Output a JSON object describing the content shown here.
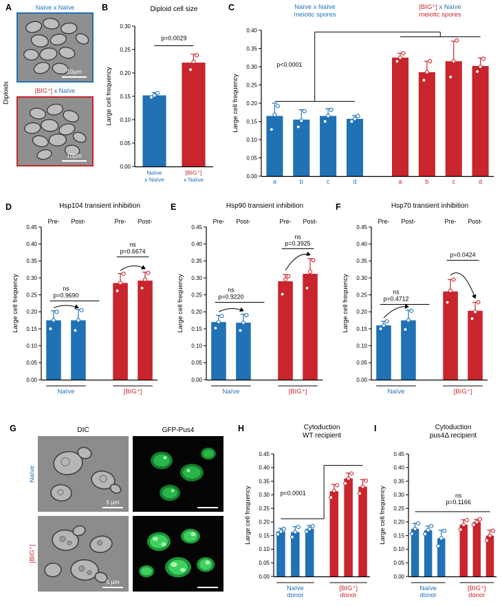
{
  "colors": {
    "blue": "#2171b5",
    "red": "#c9252c",
    "black": "#000000",
    "white": "#ffffff"
  },
  "panels": {
    "A": {
      "label": "A",
      "side_label": "Diploids",
      "top": {
        "title_parts": [
          {
            "t": "Naïve x Naïve",
            "c": "blue"
          }
        ],
        "scale_label": "10µm"
      },
      "bottom": {
        "title_parts": [
          {
            "t": "[BIG⁺]",
            "c": "red"
          },
          {
            "t": " x Naïve",
            "c": "blue"
          }
        ],
        "scale_label": "10µm"
      }
    },
    "B": {
      "label": "B"
    },
    "C": {
      "label": "C",
      "header_left": [
        [
          {
            "t": "Naïve x Naïve",
            "c": "blue"
          }
        ],
        [
          {
            "t": "meiotic spores",
            "c": "blue"
          }
        ]
      ],
      "header_right": [
        [
          {
            "t": "[BIG⁺]",
            "c": "red"
          },
          {
            "t": " x Naïve",
            "c": "blue"
          }
        ],
        [
          {
            "t": "meiotic spores",
            "c": "red"
          }
        ]
      ]
    },
    "D": {
      "label": "D"
    },
    "E": {
      "label": "E"
    },
    "F": {
      "label": "F"
    },
    "G": {
      "label": "G",
      "col_headers": [
        "DIC",
        "GFP-Pus4"
      ],
      "row_labels": [
        [
          {
            "t": "Naïve",
            "c": "blue"
          }
        ],
        [
          {
            "t": "[BIG⁺]",
            "c": "red"
          }
        ]
      ],
      "scale_label": "5 µm"
    },
    "H": {
      "label": "H"
    },
    "I": {
      "label": "I"
    }
  },
  "chart_data": [
    {
      "id": "B",
      "type": "bar",
      "title": "Diploid cell size",
      "ylabel": "Large cell frequency",
      "ylim": [
        0,
        0.3
      ],
      "ystep": 0.05,
      "margins": {
        "l": 46,
        "r": 12,
        "t": 14,
        "b": 40
      },
      "bar_frac": 0.6,
      "gap_after": -1,
      "bars": [
        {
          "v": 0.152,
          "e": 0.006,
          "c": "blue",
          "dots": [
            0.148,
            0.152,
            0.157
          ],
          "xlines": [
            [
              {
                "t": "Naïve",
                "c": "blue"
              }
            ],
            [
              {
                "t": "x Naïve",
                "c": "blue"
              }
            ]
          ]
        },
        {
          "v": 0.222,
          "e": 0.018,
          "c": "red",
          "dots": [
            0.207,
            0.224,
            0.238
          ],
          "xlines": [
            [
              {
                "t": "[BIG⁺]",
                "c": "red"
              }
            ],
            [
              {
                "t": "x Naïve",
                "c": "blue"
              }
            ]
          ]
        }
      ],
      "annots": [
        {
          "k": "hline",
          "x1": 0,
          "x2": 1,
          "y": 0.258
        },
        {
          "k": "text",
          "t": "p=0.0029",
          "x": 0.5,
          "y": 0.27
        }
      ]
    },
    {
      "id": "C",
      "type": "bar",
      "ylabel": "Large cell frequency",
      "ylim": [
        0,
        0.4
      ],
      "ystep": 0.05,
      "margins": {
        "l": 46,
        "r": 8,
        "t": 12,
        "b": 26
      },
      "bar_frac": 0.62,
      "gap_after": 3,
      "bars": [
        {
          "v": 0.165,
          "e": 0.035,
          "c": "blue",
          "dots": [
            0.128,
            0.168,
            0.192
          ],
          "xlab": "a"
        },
        {
          "v": 0.155,
          "e": 0.027,
          "c": "blue",
          "dots": [
            0.135,
            0.152,
            0.178
          ],
          "xlab": "b"
        },
        {
          "v": 0.165,
          "e": 0.02,
          "c": "blue",
          "dots": [
            0.15,
            0.165,
            0.182
          ],
          "xlab": "c"
        },
        {
          "v": 0.157,
          "e": 0.009,
          "c": "blue",
          "dots": [
            0.15,
            0.157,
            0.165
          ],
          "xlab": "d"
        },
        {
          "v": 0.325,
          "e": 0.012,
          "c": "red",
          "dots": [
            0.315,
            0.325,
            0.337
          ],
          "xlab": "a"
        },
        {
          "v": 0.285,
          "e": 0.03,
          "c": "red",
          "dots": [
            0.263,
            0.285,
            0.315
          ],
          "xlab": "b"
        },
        {
          "v": 0.315,
          "e": 0.055,
          "c": "red",
          "dots": [
            0.272,
            0.315,
            0.372
          ],
          "xlab": "c"
        },
        {
          "v": 0.302,
          "e": 0.022,
          "c": "red",
          "dots": [
            0.287,
            0.3,
            0.322
          ],
          "xlab": "d"
        }
      ],
      "annots": [
        {
          "k": "hline",
          "x1": 0,
          "x2": 3,
          "y": 0.205
        },
        {
          "k": "vline",
          "x": 1.5,
          "y1": 0.205,
          "y2": 0.395
        },
        {
          "k": "hline",
          "x1": 1.5,
          "x2": 5.5,
          "y": 0.395
        },
        {
          "k": "vline",
          "x": 5.5,
          "y1": 0.382,
          "y2": 0.395
        },
        {
          "k": "hline",
          "x1": 4,
          "x2": 7,
          "y": 0.382
        },
        {
          "k": "text",
          "t": "p<0.0001",
          "x": 0.55,
          "y": 0.3
        }
      ]
    },
    {
      "id": "D",
      "type": "bar",
      "title": "Hsp104 transient inhibition",
      "ylabel": "Large cell frequency",
      "ylim": [
        0,
        0.45
      ],
      "ystep": 0.05,
      "margins": {
        "l": 46,
        "r": 10,
        "t": 20,
        "b": 36
      },
      "bar_frac": 0.6,
      "gap_after": 1,
      "toplabels": [
        {
          "t": "Pre-",
          "x": 0
        },
        {
          "t": "Post-",
          "x": 1
        },
        {
          "t": "Pre-",
          "x": 2
        },
        {
          "t": "Post-",
          "x": 3
        }
      ],
      "bars": [
        {
          "v": 0.175,
          "e": 0.028,
          "c": "blue",
          "dots": [
            0.15,
            0.175,
            0.2
          ]
        },
        {
          "v": 0.175,
          "e": 0.032,
          "c": "blue",
          "dots": [
            0.145,
            0.175,
            0.205
          ]
        },
        {
          "v": 0.285,
          "e": 0.028,
          "c": "red",
          "dots": [
            0.262,
            0.285,
            0.312
          ]
        },
        {
          "v": 0.292,
          "e": 0.025,
          "c": "red",
          "dots": [
            0.27,
            0.295,
            0.315
          ]
        }
      ],
      "glabels": [
        {
          "lines": [
            "Naïve"
          ],
          "c": "blue",
          "x1": 0,
          "x2": 1
        },
        {
          "lines": [
            "[BIG⁺]"
          ],
          "c": "red",
          "x1": 2,
          "x2": 3
        }
      ],
      "annots": [
        {
          "k": "text",
          "t": "ns",
          "x": 0.5,
          "y": 0.262
        },
        {
          "k": "text",
          "t": "p=0.9690",
          "x": 0.5,
          "y": 0.242
        },
        {
          "k": "hline",
          "x1": -0.15,
          "x2": 1.15,
          "y": 0.232
        },
        {
          "k": "arc",
          "x1": 0,
          "x2": 1,
          "y1": 0.212,
          "y2": 0.212,
          "peak": 0.226
        },
        {
          "k": "text",
          "t": "ns",
          "x": 2.5,
          "y": 0.392
        },
        {
          "k": "text",
          "t": "p=0.6674",
          "x": 2.5,
          "y": 0.372
        },
        {
          "k": "hline",
          "x1": 1.85,
          "x2": 3.15,
          "y": 0.362
        },
        {
          "k": "arc",
          "x1": 2,
          "x2": 3,
          "y1": 0.322,
          "y2": 0.327,
          "peak": 0.346
        }
      ]
    },
    {
      "id": "E",
      "type": "bar",
      "title": "Hsp90 transient inhibition",
      "ylabel": "Large cell frequency",
      "ylim": [
        0,
        0.45
      ],
      "ystep": 0.05,
      "margins": {
        "l": 46,
        "r": 10,
        "t": 20,
        "b": 36
      },
      "bar_frac": 0.6,
      "gap_after": 1,
      "toplabels": [
        {
          "t": "Pre-",
          "x": 0
        },
        {
          "t": "Post-",
          "x": 1
        },
        {
          "t": "Pre-",
          "x": 2
        },
        {
          "t": "Post-",
          "x": 3
        }
      ],
      "bars": [
        {
          "v": 0.17,
          "e": 0.02,
          "c": "blue",
          "dots": [
            0.152,
            0.17,
            0.188
          ]
        },
        {
          "v": 0.168,
          "e": 0.025,
          "c": "blue",
          "dots": [
            0.145,
            0.168,
            0.19
          ]
        },
        {
          "v": 0.29,
          "e": 0.02,
          "c": "red",
          "dots": [
            0.252,
            0.295,
            0.305
          ]
        },
        {
          "v": 0.312,
          "e": 0.045,
          "c": "red",
          "dots": [
            0.27,
            0.318,
            0.352
          ]
        }
      ],
      "glabels": [
        {
          "lines": [
            "Naïve"
          ],
          "c": "blue",
          "x1": 0,
          "x2": 1
        },
        {
          "lines": [
            "[BIG⁺]"
          ],
          "c": "red",
          "x1": 2,
          "x2": 3
        }
      ],
      "annots": [
        {
          "k": "text",
          "t": "ns",
          "x": 0.5,
          "y": 0.258
        },
        {
          "k": "text",
          "t": "p=0.9220",
          "x": 0.5,
          "y": 0.238
        },
        {
          "k": "hline",
          "x1": -0.15,
          "x2": 1.15,
          "y": 0.228
        },
        {
          "k": "arc",
          "x1": 0,
          "x2": 1,
          "y1": 0.2,
          "y2": 0.203,
          "peak": 0.218
        },
        {
          "k": "text",
          "t": "ns",
          "x": 2.5,
          "y": 0.415
        },
        {
          "k": "text",
          "t": "p=0.3925",
          "x": 2.5,
          "y": 0.395
        },
        {
          "k": "hline",
          "x1": 1.85,
          "x2": 3.15,
          "y": 0.386
        },
        {
          "k": "arc",
          "x1": 2,
          "x2": 3,
          "y1": 0.322,
          "y2": 0.368,
          "peak": 0.38
        }
      ]
    },
    {
      "id": "F",
      "type": "bar",
      "title": "Hsp70 transient inhibition",
      "ylabel": "Large cell frequency",
      "ylim": [
        0,
        0.45
      ],
      "ystep": 0.05,
      "margins": {
        "l": 46,
        "r": 10,
        "t": 20,
        "b": 36
      },
      "bar_frac": 0.6,
      "gap_after": 1,
      "toplabels": [
        {
          "t": "Pre-",
          "x": 0
        },
        {
          "t": "Post-",
          "x": 1
        },
        {
          "t": "Pre-",
          "x": 2
        },
        {
          "t": "Post-",
          "x": 3
        }
      ],
      "bars": [
        {
          "v": 0.16,
          "e": 0.012,
          "c": "blue",
          "dots": [
            0.15,
            0.16,
            0.172
          ]
        },
        {
          "v": 0.175,
          "e": 0.03,
          "c": "blue",
          "dots": [
            0.148,
            0.175,
            0.203
          ]
        },
        {
          "v": 0.26,
          "e": 0.035,
          "c": "red",
          "dots": [
            0.228,
            0.262,
            0.295
          ]
        },
        {
          "v": 0.203,
          "e": 0.025,
          "c": "red",
          "dots": [
            0.18,
            0.2,
            0.228
          ]
        }
      ],
      "glabels": [
        {
          "lines": [
            "Naïve"
          ],
          "c": "blue",
          "x1": 0,
          "x2": 1
        },
        {
          "lines": [
            "[BIG⁺]"
          ],
          "c": "red",
          "x1": 2,
          "x2": 3
        }
      ],
      "annots": [
        {
          "k": "text",
          "t": "ns",
          "x": 0.5,
          "y": 0.252
        },
        {
          "k": "text",
          "t": "p=0.4712",
          "x": 0.5,
          "y": 0.232
        },
        {
          "k": "hline",
          "x1": -0.15,
          "x2": 1.15,
          "y": 0.222
        },
        {
          "k": "arc",
          "x1": 0,
          "x2": 1,
          "y1": 0.182,
          "y2": 0.215,
          "peak": 0.22
        },
        {
          "k": "text",
          "t": "p=0.0424",
          "x": 2.5,
          "y": 0.362
        },
        {
          "k": "hline",
          "x1": 1.85,
          "x2": 3.15,
          "y": 0.352
        },
        {
          "k": "arc",
          "x1": 2,
          "x2": 3,
          "y1": 0.308,
          "y2": 0.24,
          "peak": 0.338
        }
      ]
    },
    {
      "id": "H",
      "type": "bar",
      "title_lines": [
        "Cytoduction",
        "WT recipient"
      ],
      "ylabel": "Large cell frequency",
      "ylim": [
        0,
        0.45
      ],
      "ystep": 0.05,
      "margins": {
        "l": 46,
        "r": 6,
        "t": 12,
        "b": 38
      },
      "bar_frac": 0.6,
      "gap_after": 2,
      "bars": [
        {
          "v": 0.165,
          "e": 0.012,
          "c": "blue",
          "dots": [
            0.155,
            0.165,
            0.175
          ]
        },
        {
          "v": 0.163,
          "e": 0.02,
          "c": "blue",
          "dots": [
            0.145,
            0.163,
            0.182
          ]
        },
        {
          "v": 0.175,
          "e": 0.012,
          "c": "blue",
          "dots": [
            0.165,
            0.175,
            0.185
          ]
        },
        {
          "v": 0.313,
          "e": 0.025,
          "c": "red",
          "dots": [
            0.29,
            0.315,
            0.335
          ]
        },
        {
          "v": 0.36,
          "e": 0.02,
          "c": "red",
          "dots": [
            0.342,
            0.36,
            0.378
          ]
        },
        {
          "v": 0.33,
          "e": 0.026,
          "c": "red",
          "dots": [
            0.305,
            0.33,
            0.352
          ]
        }
      ],
      "glabels": [
        {
          "lines": [
            "Naïve",
            "donor"
          ],
          "c": "blue",
          "x1": 0,
          "x2": 2
        },
        {
          "lines": [
            "[BIG⁺]",
            "donor"
          ],
          "c": "red",
          "x1": 3,
          "x2": 5
        }
      ],
      "annots": [
        {
          "k": "hline",
          "x1": 0,
          "x2": 2.3,
          "y": 0.212
        },
        {
          "k": "vline",
          "x": 2.3,
          "y1": 0.212,
          "y2": 0.408
        },
        {
          "k": "hline",
          "x1": 2.3,
          "x2": 5,
          "y": 0.408
        },
        {
          "k": "text",
          "t": "p<0.0001",
          "x": 0.85,
          "y": 0.298
        }
      ]
    },
    {
      "id": "I",
      "type": "bar",
      "title_lines": [
        "Cytoduction",
        "pus4Δ recipient"
      ],
      "ylabel": "Large cell frequency",
      "ylim": [
        0,
        0.45
      ],
      "ystep": 0.05,
      "margins": {
        "l": 46,
        "r": 8,
        "t": 12,
        "b": 38
      },
      "bar_frac": 0.6,
      "gap_after": 2,
      "bars": [
        {
          "v": 0.175,
          "e": 0.02,
          "c": "blue",
          "dots": [
            0.157,
            0.175,
            0.195
          ]
        },
        {
          "v": 0.17,
          "e": 0.015,
          "c": "blue",
          "dots": [
            0.156,
            0.17,
            0.185
          ]
        },
        {
          "v": 0.14,
          "e": 0.03,
          "c": "blue",
          "dots": [
            0.112,
            0.14,
            0.168
          ]
        },
        {
          "v": 0.19,
          "e": 0.018,
          "c": "red",
          "dots": [
            0.172,
            0.19,
            0.207
          ]
        },
        {
          "v": 0.2,
          "e": 0.01,
          "c": "red",
          "dots": [
            0.19,
            0.2,
            0.21
          ]
        },
        {
          "v": 0.15,
          "e": 0.02,
          "c": "red",
          "dots": [
            0.132,
            0.15,
            0.168
          ]
        }
      ],
      "glabels": [
        {
          "lines": [
            "Naïve",
            "donor"
          ],
          "c": "blue",
          "x1": 0,
          "x2": 2
        },
        {
          "lines": [
            "[BIG⁺]",
            "donor"
          ],
          "c": "red",
          "x1": 3,
          "x2": 5
        }
      ],
      "annots": [
        {
          "k": "hline",
          "x1": 0,
          "x2": 5,
          "y": 0.238
        },
        {
          "k": "text",
          "t": "ns",
          "x": 2.6,
          "y": 0.29
        },
        {
          "k": "text",
          "t": "p=0.1166",
          "x": 2.6,
          "y": 0.266
        }
      ]
    }
  ]
}
